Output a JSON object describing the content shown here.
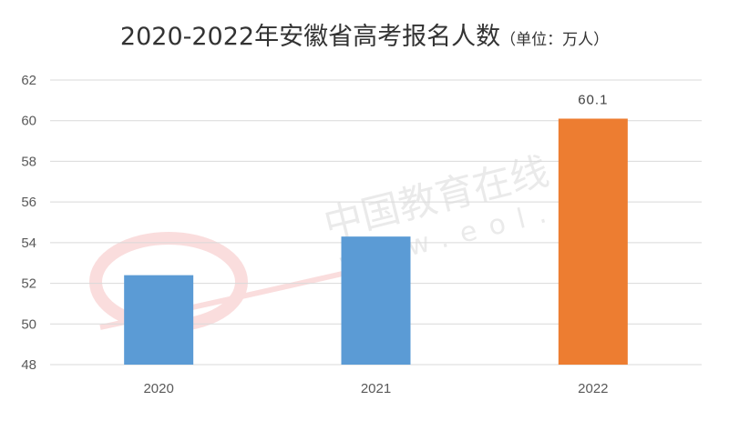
{
  "chart_data": {
    "type": "bar",
    "title": "2020-2022年安徽省高考报名人数",
    "unit": "（单位：万人）",
    "categories": [
      "2020",
      "2021",
      "2022"
    ],
    "values": [
      52.4,
      54.3,
      60.1
    ],
    "colors": [
      "#5b9bd5",
      "#5b9bd5",
      "#ed7d31"
    ],
    "data_labels": [
      "",
      "",
      "60.1"
    ],
    "ylim": [
      48,
      62
    ],
    "yticks": [
      48,
      50,
      52,
      54,
      56,
      58,
      60,
      62
    ],
    "grid": true,
    "watermark": "中国教育在线 www.eol.cn"
  }
}
